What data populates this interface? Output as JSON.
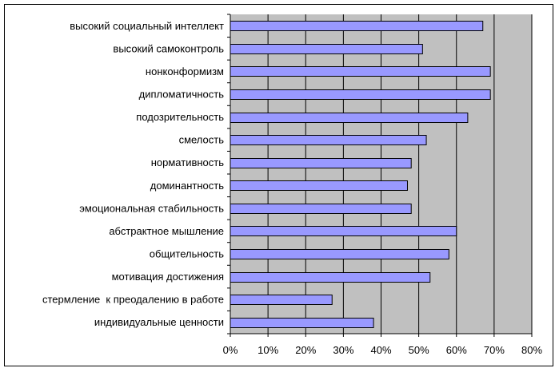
{
  "chart_data": {
    "type": "bar",
    "orientation": "horizontal",
    "title": "",
    "xlabel": "",
    "ylabel": "",
    "categories": [
      "высокий социальный интеллект",
      "высокий самоконтроль",
      "нонконформизм",
      "дипломатичность",
      "подозрительность",
      "смелость",
      "нормативность",
      "доминантность",
      "эмоциональная стабильность",
      "абстрактное мышление",
      "общительность",
      "мотивация достижения",
      "стермление  к преодалению в работе",
      "индивидуальные ценности"
    ],
    "values": [
      67,
      51,
      69,
      69,
      63,
      52,
      48,
      47,
      48,
      60,
      58,
      53,
      27,
      38
    ],
    "value_unit": "%",
    "xlim": [
      0,
      80
    ],
    "x_ticks": [
      0,
      10,
      20,
      30,
      40,
      50,
      60,
      70,
      80
    ],
    "x_tick_labels": [
      "0%",
      "10%",
      "20%",
      "30%",
      "40%",
      "50%",
      "60%",
      "70%",
      "80%"
    ],
    "grid": true,
    "legend": "none",
    "colors": {
      "bar_fill": "#9999ff",
      "bar_stroke": "#000000",
      "plot_background": "#c0c0c0",
      "gridline": "#000000"
    }
  }
}
